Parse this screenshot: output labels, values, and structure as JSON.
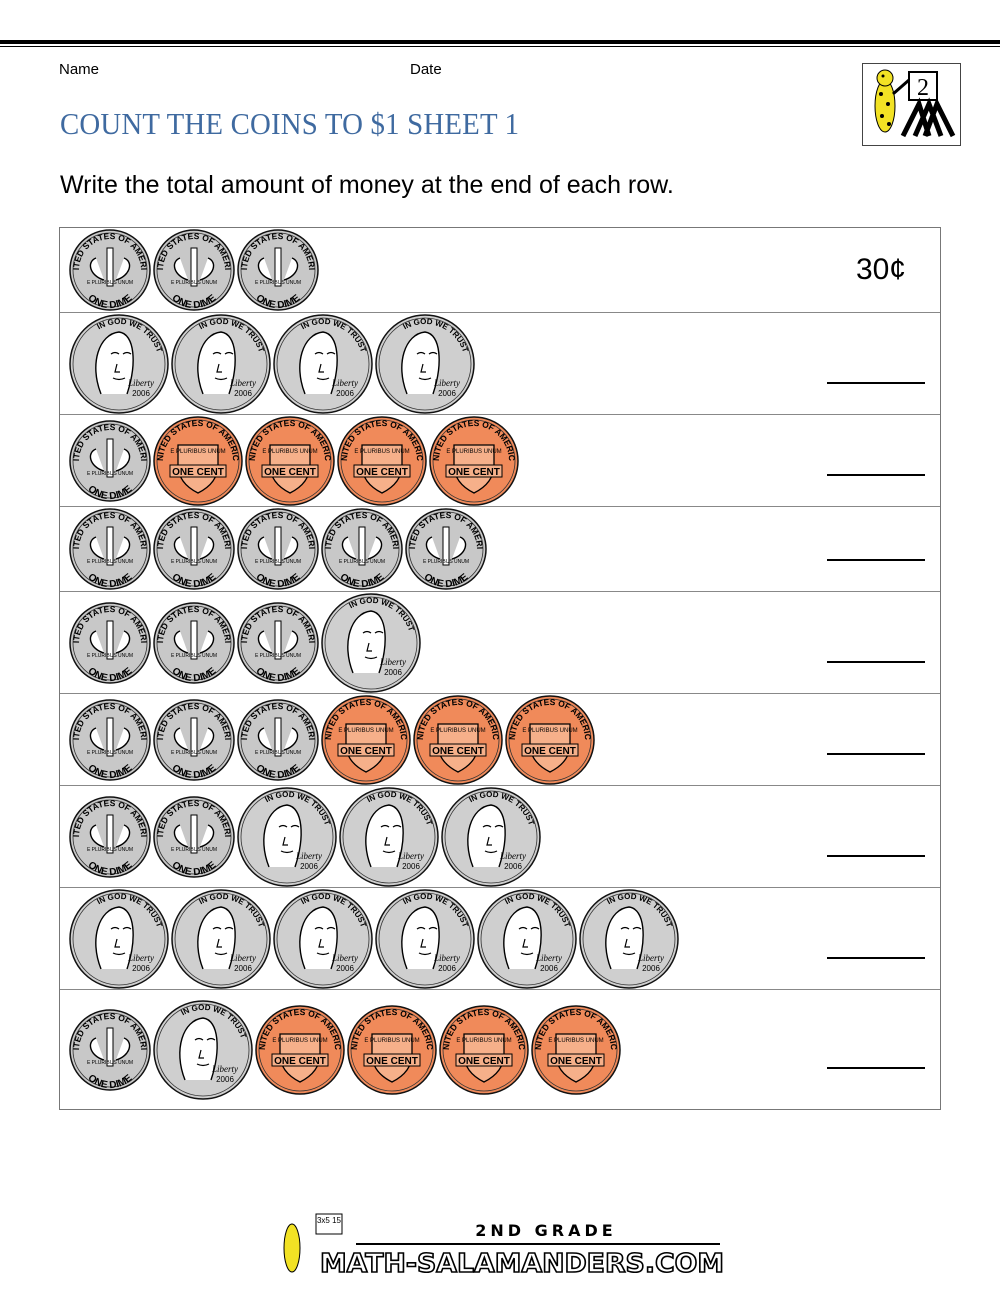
{
  "header": {
    "name_label": "Name",
    "date_label": "Date",
    "title": "COUNT THE COINS TO $1 SHEET 1",
    "logo_text": "2"
  },
  "instructions": "Write the total amount of money at the end of each row.",
  "coins": {
    "dime": {
      "top": "UNITED STATES OF AMERICA",
      "bottom": "ONE DIME",
      "motto": "E PLURIBUS UNUM",
      "color": "#c8c8c8"
    },
    "nickel": {
      "top": "IN GOD WE TRUST",
      "script": "Liberty",
      "year": "2006",
      "color": "#cfcfcf"
    },
    "penny": {
      "top": "UNITED STATES OF AMERICA",
      "bottom": "ONE CENT",
      "motto": "E PLURIBUS UNUM",
      "color": "#f08a5a"
    }
  },
  "rows": [
    {
      "coins": [
        "dime",
        "dime",
        "dime"
      ],
      "answer": "30¢"
    },
    {
      "coins": [
        "nickel",
        "nickel",
        "nickel",
        "nickel"
      ],
      "answer": ""
    },
    {
      "coins": [
        "dime",
        "penny",
        "penny",
        "penny",
        "penny"
      ],
      "answer": ""
    },
    {
      "coins": [
        "dime",
        "dime",
        "dime",
        "dime",
        "dime"
      ],
      "answer": ""
    },
    {
      "coins": [
        "dime",
        "dime",
        "dime",
        "nickel"
      ],
      "answer": ""
    },
    {
      "coins": [
        "dime",
        "dime",
        "dime",
        "penny",
        "penny",
        "penny"
      ],
      "answer": ""
    },
    {
      "coins": [
        "dime",
        "dime",
        "nickel",
        "nickel",
        "nickel"
      ],
      "answer": ""
    },
    {
      "coins": [
        "nickel",
        "nickel",
        "nickel",
        "nickel",
        "nickel",
        "nickel"
      ],
      "answer": ""
    },
    {
      "coins": [
        "dime",
        "nickel",
        "penny",
        "penny",
        "penny",
        "penny"
      ],
      "answer": ""
    }
  ],
  "footer": {
    "grade": "2ND GRADE",
    "site": "MATH-SALAMANDERS.COM",
    "badge": "3x5 15"
  }
}
